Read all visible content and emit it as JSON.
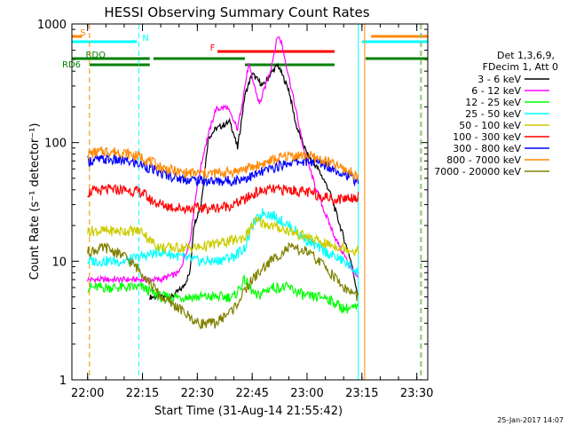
{
  "chart_data": {
    "type": "line",
    "title": "HESSI Observing Summary Count Rates",
    "xlabel": "Start Time (31-Aug-14 21:55:42)",
    "ylabel": "Count Rate (s⁻¹ detector⁻¹)",
    "y_scale": "log",
    "ylim": [
      1,
      1000
    ],
    "xlim": [
      "21:55:42",
      "23:33:00"
    ],
    "x_ticks": [
      "22:00",
      "22:15",
      "22:30",
      "22:45",
      "23:00",
      "23:15",
      "23:30"
    ],
    "y_ticks": [
      "1",
      "10",
      "100",
      "1000"
    ],
    "footer_date": "25-Jan-2017 14:07",
    "legend_header": [
      "Det 1,3,6,9,",
      "FDecim 1, Att 0"
    ],
    "series": [
      {
        "name": "3 - 6 keV",
        "color": "#000000",
        "x": [
          "22:17",
          "22:20",
          "22:23",
          "22:26",
          "22:28",
          "22:29",
          "22:31",
          "22:33",
          "22:35",
          "22:37",
          "22:39",
          "22:41",
          "22:43",
          "22:45",
          "22:48",
          "22:50",
          "22:52",
          "22:55",
          "22:57",
          "23:00",
          "23:03",
          "23:06",
          "23:09",
          "23:12",
          "23:14"
        ],
        "y": [
          5,
          5,
          5,
          6,
          8,
          20,
          30,
          110,
          130,
          140,
          150,
          90,
          250,
          380,
          300,
          380,
          450,
          280,
          140,
          80,
          60,
          40,
          20,
          10,
          5
        ]
      },
      {
        "name": "6 - 12 keV",
        "color": "#ff00ff",
        "x": [
          "22:00",
          "22:05",
          "22:10",
          "22:15",
          "22:20",
          "22:25",
          "22:28",
          "22:30",
          "22:32",
          "22:35",
          "22:38",
          "22:41",
          "22:44",
          "22:47",
          "22:50",
          "22:52",
          "22:53",
          "22:56",
          "22:59",
          "23:02",
          "23:05",
          "23:08",
          "23:11",
          "23:14"
        ],
        "y": [
          7,
          7,
          7,
          7,
          7,
          8,
          15,
          45,
          90,
          190,
          200,
          130,
          450,
          210,
          410,
          800,
          700,
          260,
          90,
          45,
          25,
          15,
          10,
          7
        ]
      },
      {
        "name": "12 - 25 keV",
        "color": "#00ff00",
        "x": [
          "22:00",
          "22:05",
          "22:10",
          "22:15",
          "22:20",
          "22:25",
          "22:30",
          "22:35",
          "22:40",
          "22:43",
          "22:46",
          "22:50",
          "22:55",
          "23:00",
          "23:05",
          "23:10",
          "23:14"
        ],
        "y": [
          6,
          6,
          6,
          6,
          5,
          5,
          5,
          5,
          5,
          7,
          5,
          6,
          6,
          5,
          5,
          4,
          4
        ]
      },
      {
        "name": "25 - 50 keV",
        "color": "#00ffff",
        "x": [
          "22:00",
          "22:05",
          "22:10",
          "22:15",
          "22:20",
          "22:25",
          "22:30",
          "22:35",
          "22:40",
          "22:43",
          "22:45",
          "22:48",
          "22:51",
          "22:55",
          "23:00",
          "23:05",
          "23:10",
          "23:14"
        ],
        "y": [
          10,
          10,
          10,
          11,
          12,
          11,
          10,
          10,
          11,
          13,
          20,
          26,
          24,
          20,
          15,
          12,
          10,
          8
        ]
      },
      {
        "name": "50 - 100 keV",
        "color": "#cccc00",
        "x": [
          "22:00",
          "22:05",
          "22:10",
          "22:15",
          "22:17",
          "22:20",
          "22:25",
          "22:30",
          "22:35",
          "22:40",
          "22:43",
          "22:46",
          "22:50",
          "22:55",
          "23:00",
          "23:05",
          "23:10",
          "23:14"
        ],
        "y": [
          18,
          18,
          18,
          18,
          15,
          13,
          13,
          13,
          14,
          15,
          16,
          22,
          20,
          18,
          16,
          14,
          13,
          12
        ]
      },
      {
        "name": "100 - 300 keV",
        "color": "#ff0000",
        "x": [
          "22:00",
          "22:05",
          "22:10",
          "22:15",
          "22:17",
          "22:20",
          "22:25",
          "22:30",
          "22:35",
          "22:40",
          "22:43",
          "22:46",
          "22:50",
          "22:55",
          "23:00",
          "23:05",
          "23:08",
          "23:10",
          "23:14"
        ],
        "y": [
          38,
          40,
          40,
          38,
          33,
          30,
          28,
          28,
          28,
          30,
          33,
          38,
          40,
          40,
          38,
          35,
          33,
          34,
          35
        ]
      },
      {
        "name": "300 - 800 keV",
        "color": "#0000ff",
        "x": [
          "22:00",
          "22:05",
          "22:10",
          "22:15",
          "22:20",
          "22:25",
          "22:30",
          "22:35",
          "22:40",
          "22:45",
          "22:50",
          "22:55",
          "23:00",
          "23:05",
          "23:10",
          "23:14"
        ],
        "y": [
          70,
          72,
          70,
          65,
          55,
          50,
          48,
          47,
          48,
          52,
          60,
          68,
          70,
          65,
          55,
          47
        ]
      },
      {
        "name": "800 - 7000 keV",
        "color": "#ff8800",
        "x": [
          "22:00",
          "22:05",
          "22:10",
          "22:15",
          "22:20",
          "22:25",
          "22:30",
          "22:35",
          "22:40",
          "22:45",
          "22:50",
          "22:55",
          "23:00",
          "23:05",
          "23:10",
          "23:14"
        ],
        "y": [
          80,
          85,
          82,
          75,
          62,
          56,
          55,
          55,
          57,
          62,
          70,
          78,
          78,
          70,
          60,
          52
        ]
      },
      {
        "name": "7000 - 20000 keV",
        "color": "#808000",
        "x": [
          "22:00",
          "22:05",
          "22:10",
          "22:15",
          "22:20",
          "22:25",
          "22:30",
          "22:35",
          "22:40",
          "22:45",
          "22:50",
          "22:55",
          "23:00",
          "23:05",
          "23:10",
          "23:14"
        ],
        "y": [
          12,
          13,
          11,
          8,
          5,
          4,
          3,
          3,
          4,
          7,
          10,
          13,
          12,
          9,
          6,
          5
        ]
      }
    ],
    "flags": [
      {
        "name": "S",
        "color": "#ff8800",
        "segments": [
          [
            "21:55:42",
            "21:58:30"
          ],
          [
            "23:17:30",
            "23:33:00"
          ]
        ],
        "label_time": "21:57:00"
      },
      {
        "name": "N",
        "color": "#00ffff",
        "segments": [
          [
            "21:55:42",
            "22:13:30"
          ],
          [
            "23:15:00",
            "23:33:00"
          ]
        ],
        "label_time": "22:14:00"
      },
      {
        "name": "F",
        "color": "#ff0000",
        "segments": [
          [
            "22:35:30",
            "23:07:30"
          ]
        ],
        "label_time": "22:32:30"
      },
      {
        "name": "RDO",
        "color": "#008000",
        "segments": [
          [
            "21:55:42",
            "22:17:00"
          ],
          [
            "22:18:00",
            "22:43:00"
          ],
          [
            "23:16:00",
            "23:33:00"
          ]
        ],
        "label_time": "21:58:00"
      },
      {
        "name": "RD6",
        "color": "#008000",
        "segments": [
          [
            "22:00:30",
            "22:17:00"
          ],
          [
            "22:43:00",
            "23:07:30"
          ]
        ],
        "label_time": "21:56:00"
      }
    ],
    "vlines": [
      {
        "time": "21:55:42",
        "color": "#00ffff",
        "style": "solid"
      },
      {
        "time": "22:00:30",
        "color": "#ff8800",
        "style": "dashed"
      },
      {
        "time": "22:14:00",
        "color": "#00ffff",
        "style": "dashed"
      },
      {
        "time": "23:14:00",
        "color": "#00ffff",
        "style": "solid"
      },
      {
        "time": "23:15:45",
        "color": "#ff8800",
        "style": "solid"
      },
      {
        "time": "23:31:00",
        "color": "#00ffff",
        "style": "dashed"
      },
      {
        "time": "23:31:15",
        "color": "#ff8800",
        "style": "dashed"
      }
    ]
  }
}
